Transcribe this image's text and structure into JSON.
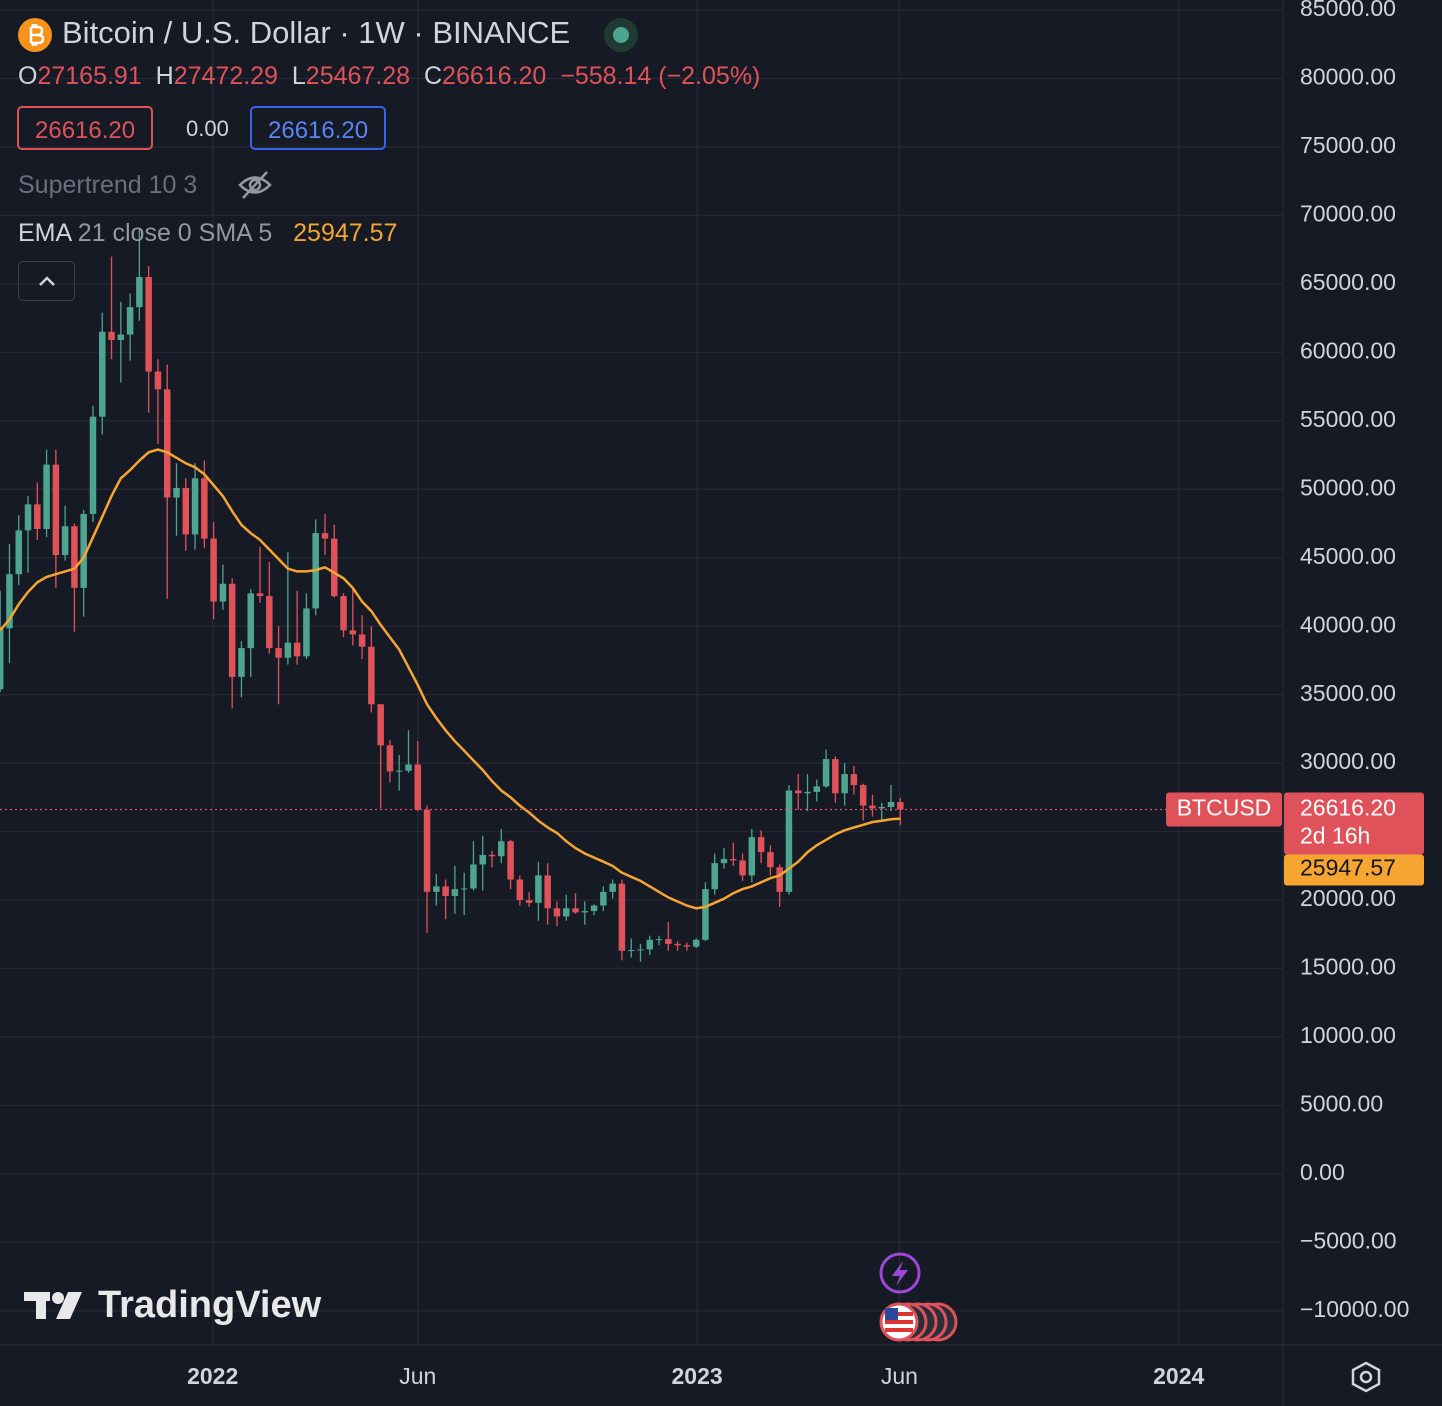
{
  "header": {
    "title": "Bitcoin / U.S. Dollar · 1W · BINANCE",
    "open_label": "O",
    "open": "27165.91",
    "high_label": "H",
    "high": "27472.29",
    "low_label": "L",
    "low": "25467.28",
    "close_label": "C",
    "close": "26616.20",
    "change": "−558.14 (−2.05%)",
    "bid": "26616.20",
    "spread": "0.00",
    "ask": "26616.20",
    "indicator_1": "Supertrend 10 3",
    "indicator_2_name": "EMA",
    "indicator_2_params": "21 close 0 SMA 5",
    "indicator_2_value": "25947.57",
    "logo": "TradingView"
  },
  "chart_data": {
    "type": "candlestick",
    "up_color": "#4ea58f",
    "down_color": "#e0525a",
    "grid": true,
    "xlim": [
      -0.02,
      138.24
    ],
    "xticks": [
      {
        "value": 22.9,
        "label": "2022"
      },
      {
        "value": 45,
        "label": "Jun"
      },
      {
        "value": 75.1,
        "label": "2023"
      },
      {
        "value": 96.9,
        "label": "Jun"
      },
      {
        "value": 127,
        "label": "2024"
      }
    ],
    "ylim": [
      -12490,
      85730
    ],
    "yticks": [
      {
        "value": 85000,
        "label": "85000.00"
      },
      {
        "value": 80000,
        "label": "80000.00"
      },
      {
        "value": 75000,
        "label": "75000.00"
      },
      {
        "value": 70000,
        "label": "70000.00"
      },
      {
        "value": 65000,
        "label": "65000.00"
      },
      {
        "value": 60000,
        "label": "60000.00"
      },
      {
        "value": 55000,
        "label": "55000.00"
      },
      {
        "value": 50000,
        "label": "50000.00"
      },
      {
        "value": 45000,
        "label": "45000.00"
      },
      {
        "value": 40000,
        "label": "40000.00"
      },
      {
        "value": 35000,
        "label": "35000.00"
      },
      {
        "value": 30000,
        "label": "30000.00"
      },
      {
        "value": 25000,
        "label": "25000.00"
      },
      {
        "value": 20000,
        "label": "20000.00"
      },
      {
        "value": 15000,
        "label": "15000.00"
      },
      {
        "value": 10000,
        "label": "10000.00"
      },
      {
        "value": 5000,
        "label": "5000.00"
      },
      {
        "value": 0,
        "label": "0.00"
      },
      {
        "value": -5000,
        "label": "−5000.00"
      },
      {
        "value": -10000,
        "label": "−10000.00"
      }
    ],
    "open": [
      35400,
      39850,
      43800,
      47000,
      48900,
      47100,
      51800,
      45200,
      47300,
      42800,
      48200,
      55300,
      61500,
      60900,
      61300,
      63300,
      65500,
      58600,
      57300,
      49400,
      50100,
      46700,
      50800,
      46400,
      41800,
      43100,
      36300,
      38400,
      42400,
      42200,
      38400,
      37700,
      38800,
      37800,
      41300,
      46800,
      46400,
      42200,
      39700,
      39400,
      38500,
      34300,
      31300,
      29400,
      29450,
      29900,
      26600,
      20600,
      21000,
      20300,
      20800,
      20850,
      22600,
      23300,
      23200,
      24300,
      21500,
      20000,
      19800,
      21800,
      19400,
      18800,
      19400,
      19100,
      19200,
      19600,
      20600,
      21200,
      16300,
      16350,
      16400,
      17100,
      17150,
      16800,
      16700,
      16600,
      17100,
      20800,
      22700,
      23000,
      22900,
      21800,
      24600,
      23500,
      22400,
      20600,
      28000,
      27800,
      27900,
      28300,
      30300,
      27800,
      29200,
      28400,
      26900,
      26700,
      26800,
      27165.91
    ],
    "high": [
      42600,
      46000,
      48100,
      49500,
      50500,
      52900,
      52900,
      48800,
      47500,
      48500,
      56100,
      62900,
      67000,
      63700,
      64300,
      69000,
      66300,
      59500,
      59100,
      51900,
      50800,
      51900,
      52100,
      47600,
      44500,
      43500,
      38900,
      42700,
      45800,
      44700,
      40000,
      45400,
      42600,
      42400,
      47800,
      48200,
      47400,
      42400,
      42900,
      40800,
      40000,
      34300,
      31700,
      30600,
      32400,
      31600,
      26900,
      21900,
      21500,
      22500,
      22000,
      24300,
      24700,
      23600,
      25200,
      24400,
      21800,
      20600,
      22800,
      22700,
      19900,
      20400,
      20500,
      19900,
      19700,
      21000,
      21500,
      21500,
      17200,
      16800,
      17400,
      17400,
      18400,
      17000,
      16900,
      17200,
      21300,
      23400,
      23800,
      24200,
      23400,
      25200,
      25100,
      24000,
      22600,
      28400,
      29200,
      29200,
      28800,
      31000,
      30500,
      30000,
      29800,
      28500,
      27700,
      27100,
      28400,
      27472.29
    ],
    "low": [
      35200,
      37300,
      43000,
      43900,
      46300,
      46500,
      42800,
      44800,
      39600,
      40700,
      47600,
      54000,
      59500,
      57800,
      59400,
      62300,
      55600,
      53300,
      42000,
      46600,
      45500,
      45600,
      45700,
      40500,
      41200,
      34000,
      34800,
      36300,
      41700,
      38000,
      34300,
      37200,
      37200,
      37600,
      40800,
      45200,
      42100,
      39200,
      38600,
      37600,
      33700,
      26700,
      28600,
      28000,
      29300,
      26500,
      17600,
      19600,
      18600,
      19000,
      18900,
      20700,
      20700,
      22400,
      22700,
      20800,
      19600,
      19500,
      18500,
      18200,
      18100,
      18500,
      19000,
      18200,
      18900,
      19200,
      20100,
      15600,
      15800,
      15500,
      16000,
      16700,
      16300,
      16300,
      16300,
      16500,
      17000,
      20400,
      22300,
      22500,
      21400,
      21300,
      22700,
      21800,
      19500,
      20400,
      26600,
      26500,
      27200,
      28200,
      27100,
      26900,
      27700,
      25800,
      26100,
      25900,
      26500,
      25467.28
    ],
    "close": [
      39850,
      43800,
      47000,
      48900,
      47100,
      51800,
      45200,
      47300,
      42800,
      48200,
      55300,
      61500,
      60900,
      61300,
      63300,
      65500,
      58600,
      57300,
      49400,
      50100,
      46700,
      50800,
      46400,
      41800,
      43100,
      36300,
      38400,
      42400,
      42200,
      38400,
      37700,
      38800,
      37800,
      41300,
      46800,
      46400,
      42200,
      39700,
      39400,
      38500,
      34300,
      31300,
      29400,
      29450,
      29900,
      26600,
      20600,
      21000,
      20300,
      20800,
      20850,
      22600,
      23300,
      23200,
      24300,
      21500,
      20000,
      19800,
      21800,
      19400,
      18800,
      19400,
      19100,
      19200,
      19600,
      20600,
      21200,
      16300,
      16350,
      16400,
      17100,
      17150,
      16800,
      16700,
      16600,
      17100,
      20800,
      22700,
      23000,
      22900,
      21800,
      24600,
      23500,
      22400,
      20600,
      28000,
      27800,
      27900,
      28300,
      30300,
      27800,
      29200,
      28400,
      26900,
      26700,
      26800,
      27165.91,
      26616.2
    ],
    "ema": {
      "name": "EMA",
      "color": "#f7a531",
      "values": [
        39700,
        40500,
        41600,
        42500,
        43200,
        43600,
        43800,
        44000,
        44200,
        45000,
        46500,
        48000,
        49500,
        50800,
        51400,
        52100,
        52700,
        52900,
        52700,
        52300,
        51900,
        51600,
        51100,
        50300,
        49500,
        48400,
        47400,
        46800,
        46300,
        45600,
        44900,
        44200,
        44000,
        44000,
        44100,
        44300,
        43900,
        43500,
        42800,
        41800,
        41100,
        40100,
        39200,
        38300,
        37000,
        35700,
        34300,
        33300,
        32400,
        31600,
        30900,
        30200,
        29500,
        28700,
        28000,
        27500,
        26900,
        26400,
        25800,
        25300,
        24900,
        24300,
        23800,
        23400,
        23100,
        22800,
        22500,
        22000,
        21700,
        21400,
        21000,
        20600,
        20200,
        19900,
        19600,
        19400,
        19500,
        19800,
        20100,
        20500,
        20800,
        21000,
        21300,
        21600,
        21800,
        22300,
        22800,
        23500,
        24000,
        24400,
        24800,
        25100,
        25300,
        25500,
        25700,
        25800,
        25900,
        25947.57
      ],
      "value_label": "25947.57"
    },
    "price_line": {
      "name": "BTCUSD",
      "value": 26616.2,
      "label": "26616.20",
      "countdown": "2d 16h"
    }
  }
}
